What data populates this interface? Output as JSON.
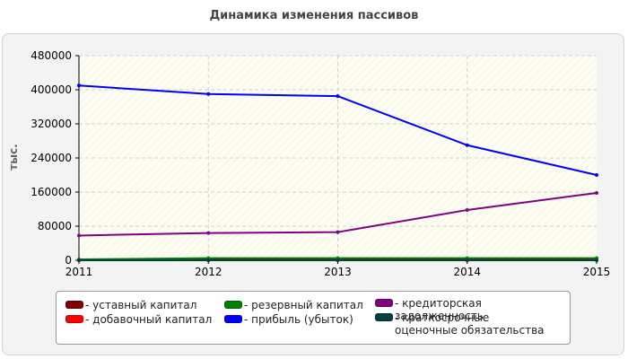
{
  "chart_data": {
    "type": "line",
    "title": "Динамика изменения пассивов",
    "xlabel": "",
    "ylabel": "тыс.",
    "x": [
      "2011",
      "2012",
      "2013",
      "2014",
      "2015"
    ],
    "ylim": [
      0,
      480000
    ],
    "yticks": [
      0,
      80000,
      160000,
      240000,
      320000,
      400000,
      480000
    ],
    "grid": true,
    "legend_position": "bottom",
    "series": [
      {
        "name": "уставный капитал",
        "color": "#800000",
        "values": [
          1000,
          1000,
          1000,
          1000,
          1000
        ]
      },
      {
        "name": "добавочный капитал",
        "color": "#ff0000",
        "values": [
          0,
          0,
          0,
          0,
          0
        ]
      },
      {
        "name": "резервный капитал",
        "color": "#008000",
        "values": [
          2000,
          5000,
          5000,
          5000,
          5000
        ]
      },
      {
        "name": "прибыль (убыток)",
        "color": "#0000ff",
        "values": [
          410000,
          390000,
          385000,
          270000,
          200000
        ]
      },
      {
        "name": "кредиторская задолженность",
        "color": "#800080",
        "values": [
          58000,
          64000,
          66000,
          118000,
          158000
        ]
      },
      {
        "name": "краткосрочные оценочные обязательства",
        "color": "#004040",
        "values": [
          0,
          0,
          0,
          0,
          0
        ]
      }
    ]
  },
  "legend_items": [
    {
      "label": "- уставный капитал",
      "color": "#800000"
    },
    {
      "label": "- добавочный капитал",
      "color": "#ff0000"
    },
    {
      "label": "- резервный капитал",
      "color": "#008000"
    },
    {
      "label": "- прибыль (убыток)",
      "color": "#0000ff"
    },
    {
      "label": "- кредиторская задолженность",
      "color": "#800080"
    },
    {
      "label": "- краткосрочные оценочные обязательства",
      "color": "#004040"
    }
  ]
}
